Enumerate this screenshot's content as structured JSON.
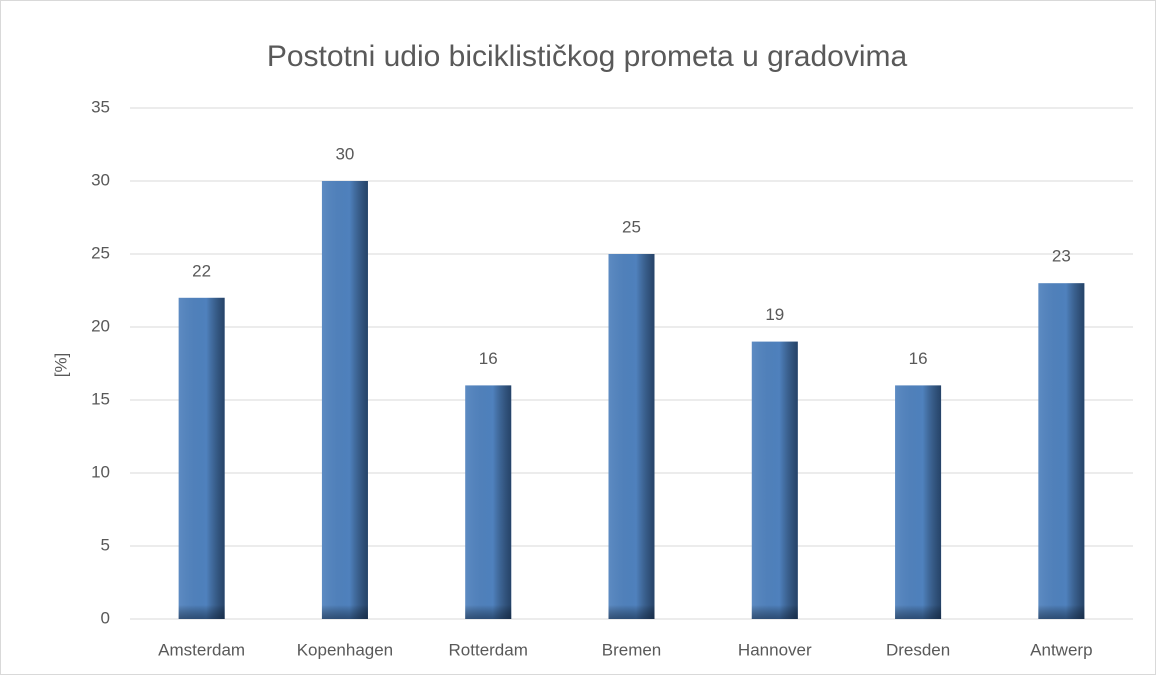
{
  "chart_data": {
    "type": "bar",
    "title": "Postotni udio biciklističkog prometa u gradovima",
    "y_label": "[%]",
    "categories": [
      "Amsterdam",
      "Kopenhagen",
      "Rotterdam",
      "Bremen",
      "Hannover",
      "Dresden",
      "Antwerp"
    ],
    "values": [
      22,
      30,
      16,
      25,
      19,
      16,
      23
    ],
    "color": "#4f81bd",
    "ylim": [
      0,
      35
    ],
    "yticks": [
      0,
      5,
      10,
      15,
      20,
      25,
      30,
      35
    ],
    "grid": true
  }
}
